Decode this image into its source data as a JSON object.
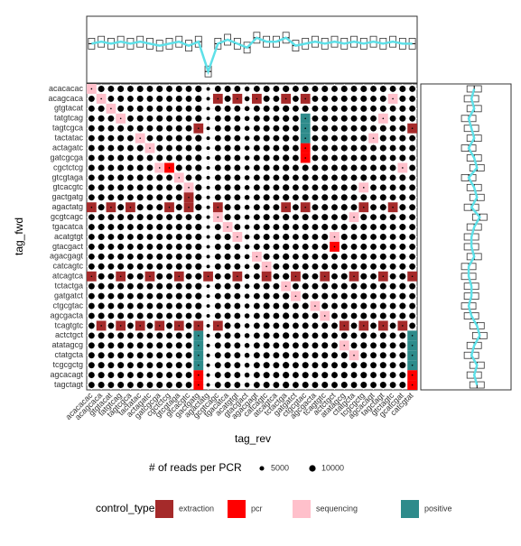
{
  "chart_data": {
    "type": "dot-matrix",
    "x_label": "tag_rev",
    "y_label": "tag_fwd",
    "rows": [
      "acacacac",
      "acagcaca",
      "gtgtacat",
      "tatgtcag",
      "tagtcgca",
      "tactatac",
      "actagatc",
      "gatcgcga",
      "cgctctcg",
      "gtcgtaga",
      "gtcacgtc",
      "gactgatg",
      "agactatg",
      "gcgtcagc",
      "tgacatca",
      "acatgtgt",
      "gtacgact",
      "agacgagt",
      "catcagtc",
      "atcagtca",
      "tctactga",
      "gatgatct",
      "ctgcgtac",
      "agcgacta",
      "tcagtgtc",
      "actctgct",
      "atatagcg",
      "ctatgcta",
      "tcgcgctg",
      "agcacagt",
      "tagctagt"
    ],
    "columns": [
      "acacacac",
      "acagcaca",
      "gtgtacat",
      "tatgtcag",
      "tagtcgca",
      "tactatac",
      "actagatc",
      "gatcgcga",
      "cgctctcg",
      "gtcgtaga",
      "gtcacgtc",
      "gactgatg",
      "agactatg",
      "gcgtcagc",
      "tgacatca",
      "acatgtgt",
      "gtacgact",
      "agacgagt",
      "catcagtc",
      "atcagtca",
      "tctactga",
      "gatgatct",
      "ctgcgtac",
      "agcgacta",
      "tcagtgtc",
      "actctgct",
      "atatagcg",
      "ctatgcta",
      "tcgcgctg",
      "agcacagt",
      "tagctagt",
      "gtctagtc",
      "gcatcgat",
      "catcgtat"
    ],
    "column_reads": [
      9000,
      9500,
      9000,
      9500,
      9000,
      9500,
      9000,
      9500,
      9000,
      9500,
      9000,
      10000,
      3000,
      9000,
      9500,
      9000,
      6000,
      9000,
      9500,
      9000,
      10000,
      9000,
      9500,
      9000,
      9500,
      9000,
      9500,
      9000,
      9500,
      9000,
      9500,
      9000,
      9500,
      9000
    ],
    "column_medians": [
      9000,
      9500,
      9000,
      9500,
      9000,
      9500,
      9000,
      8500,
      9000,
      9500,
      8500,
      9500,
      2000,
      9000,
      10000,
      9000,
      8000,
      10500,
      9500,
      9500,
      10500,
      8500,
      9000,
      9500,
      9000,
      9500,
      9000,
      9500,
      9000,
      9500,
      9000,
      9500,
      9000,
      9000
    ],
    "row_medians": [
      9000,
      8500,
      9000,
      8000,
      8500,
      9000,
      8000,
      9000,
      9500,
      8000,
      9000,
      9500,
      8500,
      10000,
      9000,
      8500,
      8500,
      9000,
      8000,
      8000,
      8500,
      8500,
      8000,
      8500,
      9500,
      10000,
      9000,
      8500,
      9500,
      9000,
      9500
    ],
    "size_legend_title": "# of reads per PCR",
    "size_legend": [
      5000,
      10000
    ],
    "control_legend_title": "control_type",
    "control_types": [
      {
        "name": "extraction",
        "color": "#a52a2a"
      },
      {
        "name": "pcr",
        "color": "#ff0000"
      },
      {
        "name": "sequencing",
        "color": "#ffc0cb"
      },
      {
        "name": "positive",
        "color": "#2e8b8b"
      }
    ],
    "controls": [
      [
        0,
        0,
        2
      ],
      [
        1,
        1,
        2
      ],
      [
        2,
        2,
        2
      ],
      [
        3,
        3,
        2
      ],
      [
        5,
        5,
        2
      ],
      [
        6,
        6,
        2
      ],
      [
        8,
        7,
        2
      ],
      [
        9,
        9,
        2
      ],
      [
        10,
        10,
        2
      ],
      [
        13,
        13,
        2
      ],
      [
        14,
        14,
        2
      ],
      [
        15,
        15,
        2
      ],
      [
        17,
        17,
        2
      ],
      [
        18,
        18,
        2
      ],
      [
        20,
        20,
        2
      ],
      [
        21,
        21,
        2
      ],
      [
        22,
        23,
        2
      ],
      [
        23,
        24,
        2
      ],
      [
        26,
        26,
        2
      ],
      [
        27,
        27,
        2
      ],
      [
        1,
        31,
        2
      ],
      [
        3,
        30,
        2
      ],
      [
        5,
        29,
        2
      ],
      [
        8,
        32,
        2
      ],
      [
        10,
        28,
        2
      ],
      [
        13,
        27,
        2
      ],
      [
        15,
        25,
        2
      ],
      [
        6,
        22,
        1
      ],
      [
        7,
        22,
        1
      ],
      [
        16,
        25,
        1
      ],
      [
        29,
        11,
        1
      ],
      [
        30,
        11,
        1
      ],
      [
        29,
        33,
        1
      ],
      [
        30,
        33,
        1
      ],
      [
        8,
        8,
        1
      ],
      [
        3,
        22,
        3
      ],
      [
        4,
        22,
        3
      ],
      [
        5,
        22,
        3
      ],
      [
        25,
        11,
        3
      ],
      [
        26,
        11,
        3
      ],
      [
        27,
        11,
        3
      ],
      [
        28,
        11,
        3
      ],
      [
        25,
        33,
        3
      ],
      [
        26,
        33,
        3
      ],
      [
        27,
        33,
        3
      ],
      [
        28,
        33,
        3
      ],
      [
        1,
        13,
        0
      ],
      [
        1,
        15,
        0
      ],
      [
        1,
        17,
        0
      ],
      [
        1,
        20,
        0
      ],
      [
        1,
        22,
        0
      ],
      [
        12,
        0,
        0
      ],
      [
        12,
        2,
        0
      ],
      [
        12,
        4,
        0
      ],
      [
        12,
        8,
        0
      ],
      [
        12,
        10,
        0
      ],
      [
        12,
        13,
        0
      ],
      [
        12,
        20,
        0
      ],
      [
        12,
        22,
        0
      ],
      [
        12,
        28,
        0
      ],
      [
        12,
        31,
        0
      ],
      [
        19,
        0,
        0
      ],
      [
        19,
        3,
        0
      ],
      [
        19,
        6,
        0
      ],
      [
        19,
        9,
        0
      ],
      [
        19,
        12,
        0
      ],
      [
        19,
        15,
        0
      ],
      [
        19,
        18,
        0
      ],
      [
        19,
        21,
        0
      ],
      [
        19,
        24,
        0
      ],
      [
        19,
        27,
        0
      ],
      [
        19,
        30,
        0
      ],
      [
        19,
        33,
        0
      ],
      [
        24,
        1,
        0
      ],
      [
        24,
        3,
        0
      ],
      [
        24,
        5,
        0
      ],
      [
        24,
        7,
        0
      ],
      [
        24,
        9,
        0
      ],
      [
        24,
        11,
        0
      ],
      [
        24,
        13,
        0
      ],
      [
        24,
        26,
        0
      ],
      [
        24,
        28,
        0
      ],
      [
        24,
        30,
        0
      ],
      [
        24,
        32,
        0
      ],
      [
        4,
        11,
        0
      ],
      [
        4,
        33,
        0
      ],
      [
        11,
        10,
        0
      ]
    ],
    "reads_lim": [
      0,
      15000
    ]
  }
}
